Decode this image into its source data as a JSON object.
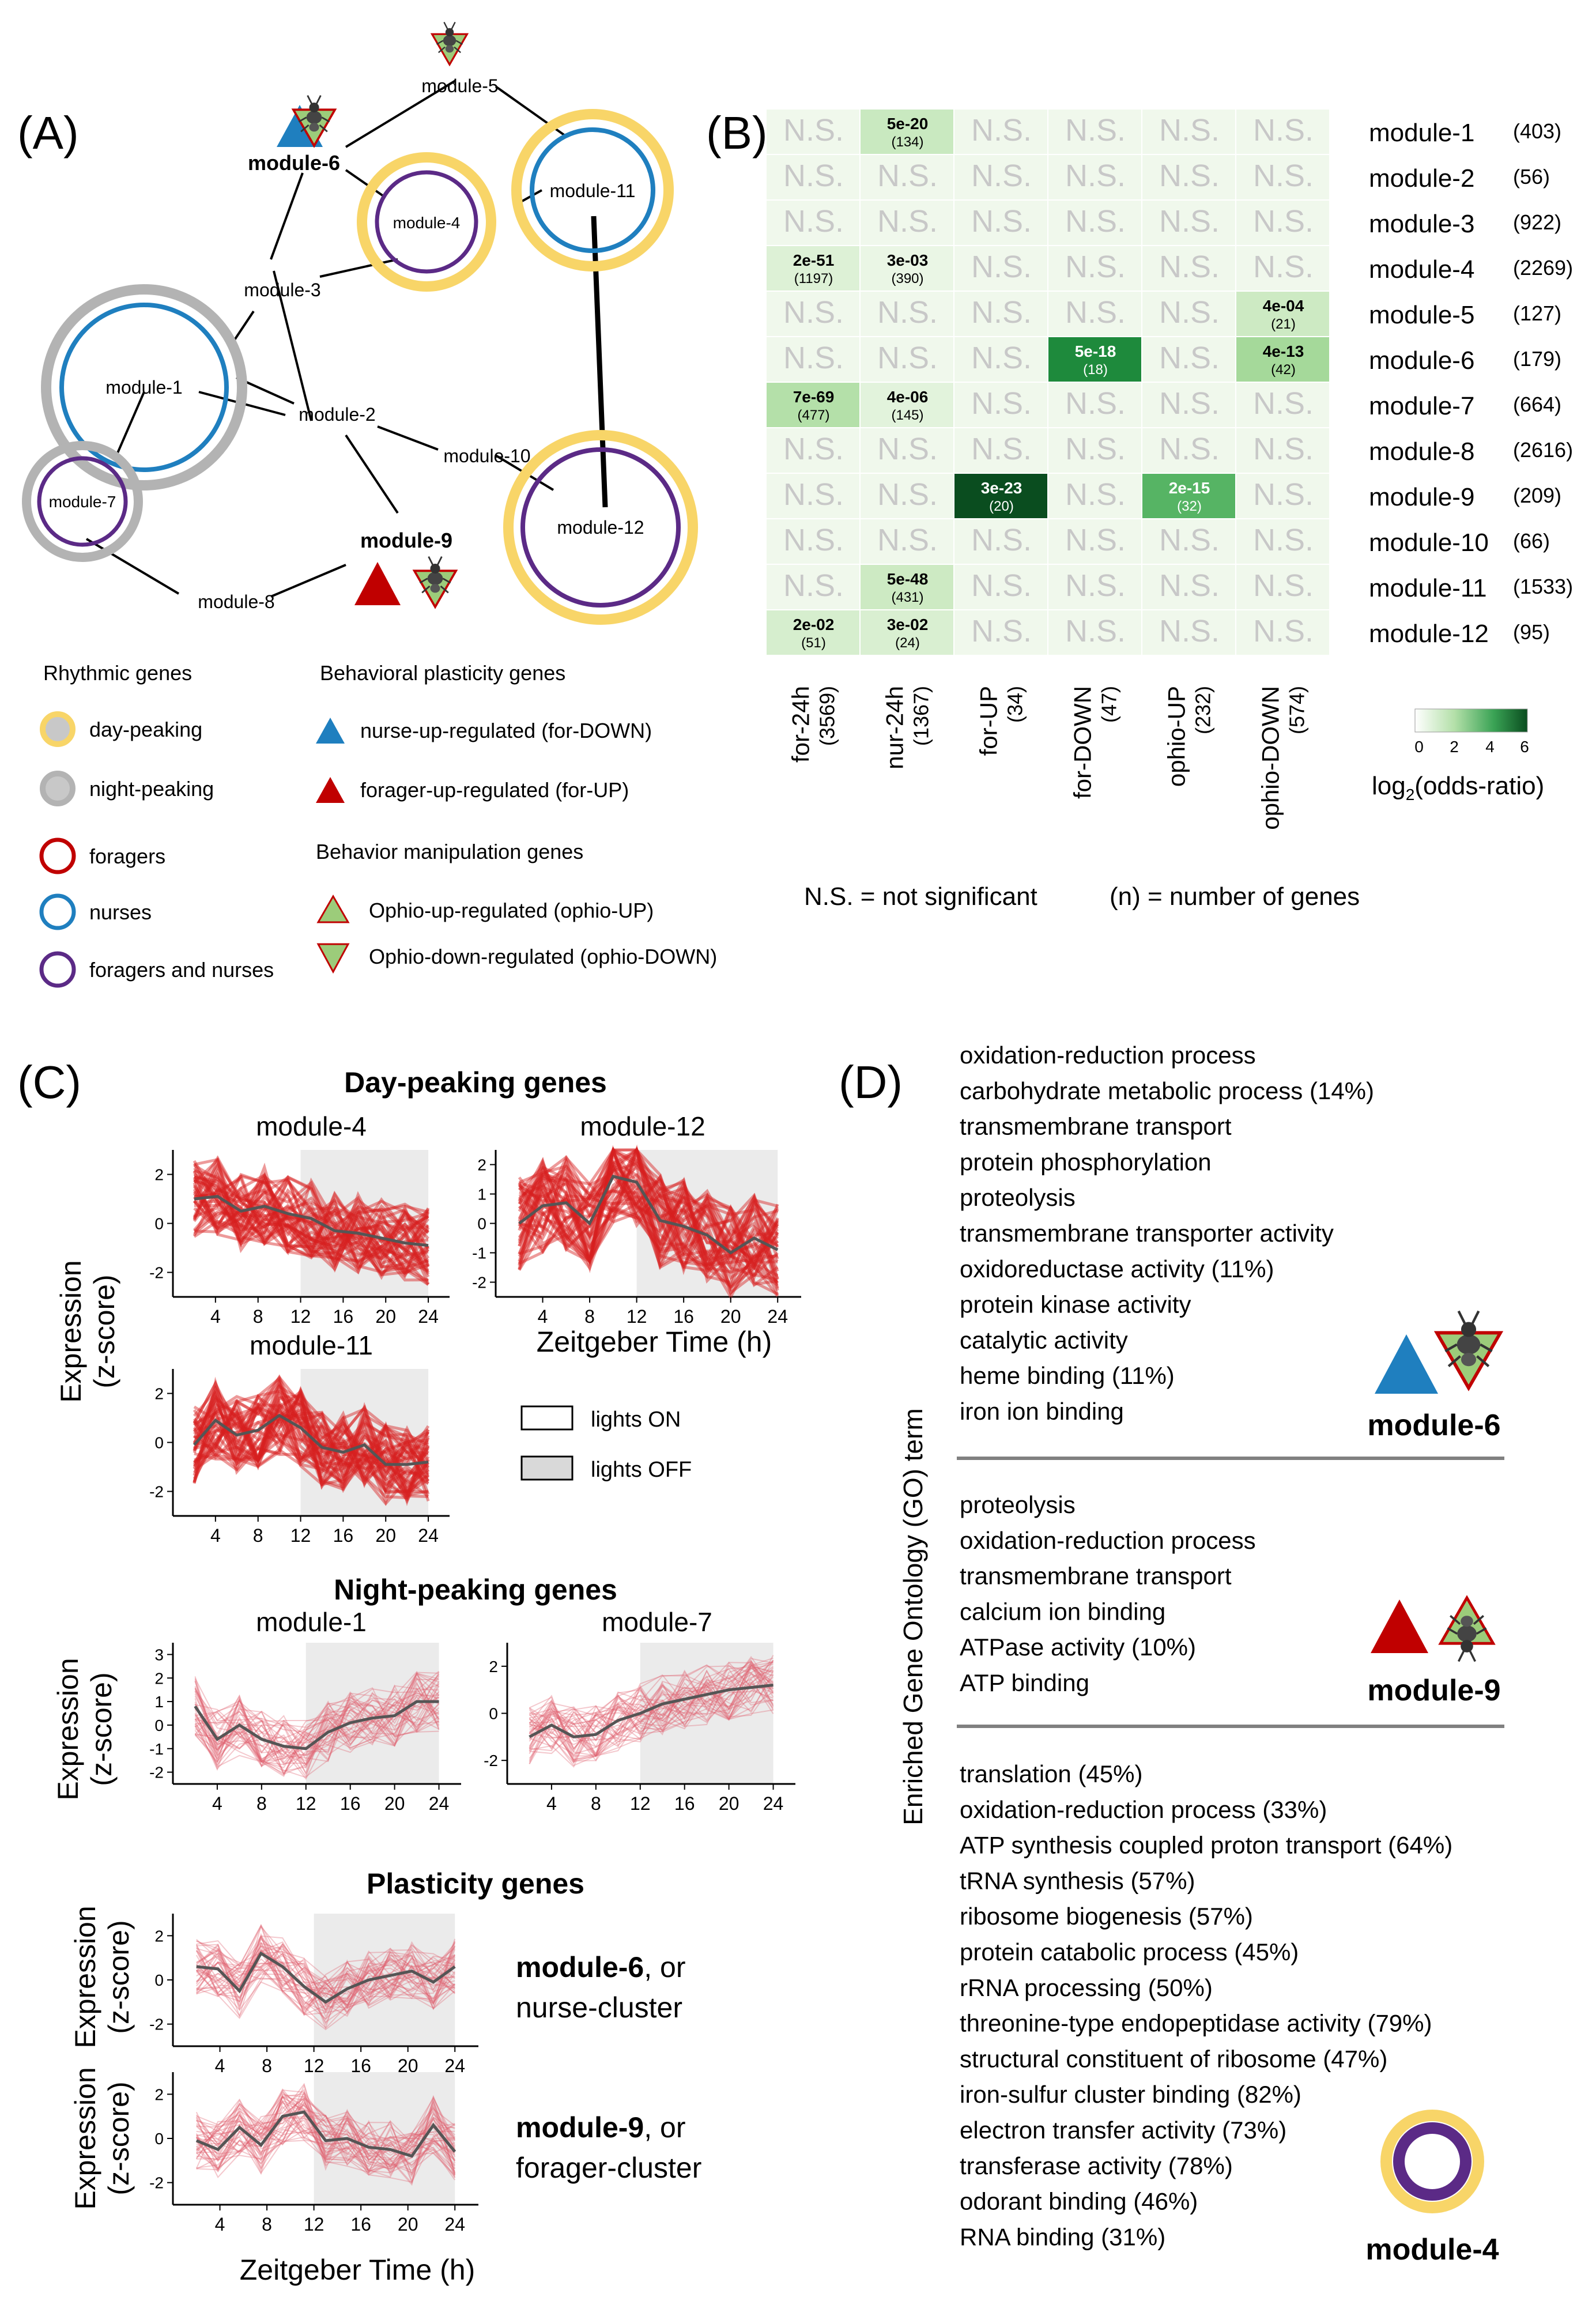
{
  "panelA": {
    "label": "(A)",
    "nodes": {
      "m1": "module-1",
      "m2": "module-2",
      "m3": "module-3",
      "m4": "module-4",
      "m5": "module-5",
      "m6": "module-6",
      "m7": "module-7",
      "m8": "module-8",
      "m9": "module-9",
      "m10": "module-10",
      "m11": "module-11",
      "m12": "module-12"
    },
    "legend": {
      "rhythmic_title": "Rhythmic genes",
      "day_peaking": "day-peaking",
      "night_peaking": "night-peaking",
      "foragers": "foragers",
      "nurses": "nurses",
      "foragers_nurses": "foragers and nurses",
      "plasticity_title": "Behavioral plasticity genes",
      "nurse_up": "nurse-up-regulated (for-DOWN)",
      "forager_up": "forager-up-regulated (for-UP)",
      "manipulation_title": "Behavior manipulation genes",
      "ophio_up": "Ophio-up-regulated (ophio-UP)",
      "ophio_down": "Ophio-down-regulated (ophio-DOWN)"
    },
    "colors": {
      "day": "#f8d568",
      "night": "#b3b3b3",
      "forager": "#c00000",
      "nurse": "#1f7fbf",
      "both": "#5b2a86",
      "green": "#9ccc7a"
    }
  },
  "panelB": {
    "label": "(B)",
    "ns": "N.S.",
    "rows": [
      {
        "name": "module-1",
        "n": "(403)"
      },
      {
        "name": "module-2",
        "n": "(56)"
      },
      {
        "name": "module-3",
        "n": "(922)"
      },
      {
        "name": "module-4",
        "n": "(2269)"
      },
      {
        "name": "module-5",
        "n": "(127)"
      },
      {
        "name": "module-6",
        "n": "(179)"
      },
      {
        "name": "module-7",
        "n": "(664)"
      },
      {
        "name": "module-8",
        "n": "(2616)"
      },
      {
        "name": "module-9",
        "n": "(209)"
      },
      {
        "name": "module-10",
        "n": "(66)"
      },
      {
        "name": "module-11",
        "n": "(1533)"
      },
      {
        "name": "module-12",
        "n": "(95)"
      }
    ],
    "cols": [
      {
        "name": "for-24h",
        "n": "(3569)"
      },
      {
        "name": "nur-24h",
        "n": "(1367)"
      },
      {
        "name": "for-UP",
        "n": "(34)"
      },
      {
        "name": "for-DOWN",
        "n": "(47)"
      },
      {
        "name": "ophio-UP",
        "n": "(232)"
      },
      {
        "name": "ophio-DOWN",
        "n": "(574)"
      }
    ],
    "cells": [
      {
        "r": 0,
        "c": 1,
        "p": "5e-20",
        "n": "(134)",
        "color": "#c9e9c0"
      },
      {
        "r": 3,
        "c": 0,
        "p": "2e-51",
        "n": "(1197)",
        "color": "#ddf1d6"
      },
      {
        "r": 3,
        "c": 1,
        "p": "3e-03",
        "n": "(390)",
        "color": "#eaf6e5"
      },
      {
        "r": 4,
        "c": 5,
        "p": "4e-04",
        "n": "(21)",
        "color": "#cdeac3"
      },
      {
        "r": 5,
        "c": 3,
        "p": "5e-18",
        "n": "(18)",
        "color": "#1e8a3c",
        "dark": true
      },
      {
        "r": 5,
        "c": 5,
        "p": "4e-13",
        "n": "(42)",
        "color": "#a5d99a"
      },
      {
        "r": 6,
        "c": 0,
        "p": "7e-69",
        "n": "(477)",
        "color": "#b4e0a9"
      },
      {
        "r": 6,
        "c": 1,
        "p": "4e-06",
        "n": "(145)",
        "color": "#e2f3dc"
      },
      {
        "r": 8,
        "c": 2,
        "p": "3e-23",
        "n": "(20)",
        "color": "#0a4d1f",
        "dark": true
      },
      {
        "r": 8,
        "c": 4,
        "p": "2e-15",
        "n": "(32)",
        "color": "#56b464",
        "dark": true
      },
      {
        "r": 10,
        "c": 1,
        "p": "5e-48",
        "n": "(431)",
        "color": "#cdeac3"
      },
      {
        "r": 11,
        "c": 0,
        "p": "2e-02",
        "n": "(51)",
        "color": "#d6eece"
      },
      {
        "r": 11,
        "c": 1,
        "p": "3e-02",
        "n": "(24)",
        "color": "#d9efd1"
      }
    ],
    "colorbar": {
      "ticks": [
        "0",
        "2",
        "4",
        "6"
      ],
      "label": "log",
      "label_sub": "2",
      "label_rest": "(odds-ratio)"
    },
    "note_ns": "N.S. = not significant",
    "note_n": "(n) = number of genes"
  },
  "panelC": {
    "label": "(C)",
    "day_title": "Day-peaking genes",
    "night_title": "Night-peaking genes",
    "plasticity_title": "Plasticity genes",
    "ylabel1": "Expression",
    "ylabel2": "(z-score)",
    "xlabel": "Zeitgeber Time (h)",
    "lights_on": "lights ON",
    "lights_off": "lights OFF",
    "plots": [
      {
        "title": "module-4",
        "xticks": [
          "4",
          "8",
          "12",
          "16",
          "20",
          "24"
        ],
        "yticks": [
          "2",
          "0",
          "-2"
        ],
        "mean": [
          1.0,
          1.1,
          0.5,
          0.7,
          0.4,
          0.2,
          -0.3,
          -0.4,
          -0.6,
          -0.8,
          -0.9
        ]
      },
      {
        "title": "module-12",
        "xticks": [
          "4",
          "8",
          "12",
          "16",
          "20",
          "24"
        ],
        "yticks": [
          "2",
          "1",
          "0",
          "-1",
          "-2"
        ],
        "mean": [
          0.0,
          0.6,
          0.7,
          0.0,
          1.6,
          1.4,
          0.1,
          -0.1,
          -0.4,
          -1.0,
          -0.5,
          -0.9
        ]
      },
      {
        "title": "module-11",
        "xticks": [
          "4",
          "8",
          "12",
          "16",
          "20",
          "24"
        ],
        "yticks": [
          "2",
          "0",
          "-2"
        ],
        "mean": [
          -0.1,
          0.9,
          0.3,
          0.5,
          1.1,
          0.6,
          -0.2,
          -0.4,
          -0.1,
          -0.9,
          -0.9,
          -0.8
        ]
      },
      {
        "title": "module-1",
        "xticks": [
          "4",
          "8",
          "12",
          "16",
          "20",
          "24"
        ],
        "yticks": [
          "3",
          "2",
          "1",
          "0",
          "-1",
          "-2"
        ],
        "mean": [
          0.8,
          -0.6,
          0.0,
          -0.6,
          -0.9,
          -1.0,
          -0.3,
          0.1,
          0.3,
          0.4,
          1.0,
          1.0
        ]
      },
      {
        "title": "module-7",
        "xticks": [
          "4",
          "8",
          "12",
          "16",
          "20",
          "24"
        ],
        "yticks": [
          "2",
          "0",
          "-2"
        ],
        "mean": [
          -1.0,
          -0.5,
          -1.0,
          -0.9,
          -0.3,
          0.0,
          0.4,
          0.6,
          0.8,
          1.0,
          1.1,
          1.2
        ]
      },
      {
        "title": "",
        "xticks": [
          "4",
          "8",
          "12",
          "16",
          "20",
          "24"
        ],
        "yticks": [
          "2",
          "0",
          "-2"
        ],
        "mean": [
          0.6,
          0.5,
          -0.5,
          1.2,
          0.6,
          -0.3,
          -1.0,
          -0.4,
          0.0,
          0.2,
          0.4,
          -0.1,
          0.6
        ]
      },
      {
        "title": "",
        "xticks": [
          "4",
          "8",
          "12",
          "16",
          "20",
          "24"
        ],
        "yticks": [
          "2",
          "0",
          "-2"
        ],
        "mean": [
          -0.1,
          -0.5,
          0.5,
          -0.3,
          1.0,
          1.2,
          -0.1,
          0.0,
          -0.4,
          -0.5,
          -0.8,
          0.6,
          -0.6
        ]
      }
    ],
    "plast6_bold": "module-6",
    "plast6_rest": ", or",
    "plast6_line2": "nurse-cluster",
    "plast9_bold": "module-9",
    "plast9_rest": ", or",
    "plast9_line2": "forager-cluster"
  },
  "panelD": {
    "label": "(D)",
    "ylabel": "Enriched Gene Ontology (GO) term",
    "group1": [
      "oxidation-reduction process",
      "carbohydrate metabolic process (14%)",
      "transmembrane transport",
      "protein phosphorylation",
      "proteolysis",
      "transmembrane transporter activity",
      "oxidoreductase activity (11%)",
      "protein kinase activity",
      "catalytic activity",
      "heme binding (11%)",
      "iron ion binding"
    ],
    "group1_module": "module-6",
    "group2": [
      "proteolysis",
      "oxidation-reduction process",
      "transmembrane transport",
      "calcium ion binding",
      "ATPase activity (10%)",
      "ATP binding"
    ],
    "group2_module": "module-9",
    "group3": [
      "translation (45%)",
      "oxidation-reduction process (33%)",
      "ATP synthesis coupled proton transport (64%)",
      "tRNA synthesis (57%)",
      "ribosome biogenesis (57%)",
      "protein catabolic process (45%)",
      "rRNA processing (50%)",
      "threonine-type endopeptidase activity (79%)",
      "structural constituent of ribosome (47%)",
      "iron-sulfur cluster binding (82%)",
      "electron transfer activity (73%)",
      "transferase activity (78%)",
      "odorant binding (46%)",
      "RNA binding (31%)"
    ],
    "group3_module": "module-4"
  }
}
